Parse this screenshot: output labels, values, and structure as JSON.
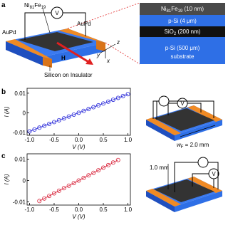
{
  "panel_labels": [
    "a",
    "b",
    "c"
  ],
  "diagram_a": {
    "voltmeter": "V",
    "film": [
      "Ni",
      "81",
      "Fe",
      "19"
    ],
    "contacts": [
      "AuPd",
      "AuPd"
    ],
    "field": "H",
    "substrate": "Silicon on Insulator",
    "axes": [
      "y",
      "z",
      "x"
    ],
    "layers": {
      "film": [
        "Ni",
        "81",
        "Fe",
        "19",
        " (10 nm)"
      ],
      "device": "p-Si (4 μm)",
      "oxide": [
        "SiO",
        "2",
        " (200 nm)"
      ],
      "base": [
        "p-Si (500 μm)",
        "substrate"
      ]
    }
  },
  "schematic_b": {
    "voltmeter": "V",
    "width": [
      "w",
      "F",
      " = 2.0 mm"
    ]
  },
  "schematic_c": {
    "voltmeter": "V",
    "length": "1.0 mm"
  },
  "chart_data": [
    {
      "type": "line",
      "xlabel": "V (V)",
      "ylabel": "I (A)",
      "x": [
        -1,
        -0.9,
        -0.8,
        -0.7,
        -0.6,
        -0.5,
        -0.4,
        -0.3,
        -0.2,
        -0.1,
        0,
        0.1,
        0.2,
        0.3,
        0.4,
        0.5,
        0.6,
        0.7,
        0.8,
        0.9,
        1
      ],
      "series": [
        {
          "color": "#2323d8",
          "values": [
            -0.0095,
            -0.00855,
            -0.0076,
            -0.00665,
            -0.0057,
            -0.00475,
            -0.0038,
            -0.00285,
            -0.0019,
            -0.00095,
            0,
            0.00095,
            0.0019,
            0.00285,
            0.0038,
            0.00475,
            0.0057,
            0.00665,
            0.0076,
            0.00855,
            0.0095
          ]
        }
      ],
      "xlim": [
        -1.05,
        1.05
      ],
      "ylim": [
        -0.0115,
        0.0125
      ],
      "xticks": [
        {
          "value": -1,
          "label": "-1.0"
        },
        {
          "value": -0.5,
          "label": "-0.5"
        },
        {
          "value": 0,
          "label": "0.0"
        },
        {
          "value": 0.5,
          "label": "0.5"
        },
        {
          "value": 1,
          "label": "1.0"
        }
      ],
      "yticks": [
        0.01,
        0,
        -0.01
      ]
    },
    {
      "type": "line",
      "xlabel": "V (V)",
      "ylabel": "I (A)",
      "x": [
        -0.8,
        -0.7,
        -0.6,
        -0.5,
        -0.4,
        -0.3,
        -0.2,
        -0.1,
        0,
        0.1,
        0.2,
        0.3,
        0.4,
        0.5,
        0.6,
        0.7,
        0.8
      ],
      "series": [
        {
          "color": "#d8233a",
          "values": [
            -0.0096,
            -0.0084,
            -0.0072,
            -0.006,
            -0.0048,
            -0.0036,
            -0.0024,
            -0.0012,
            0,
            0.0012,
            0.0024,
            0.0036,
            0.0048,
            0.006,
            0.0072,
            0.0084,
            0.0096
          ]
        }
      ],
      "xlim": [
        -1.05,
        1.05
      ],
      "ylim": [
        -0.0115,
        0.0125
      ],
      "xticks": [
        {
          "value": -1,
          "label": "-1.0"
        },
        {
          "value": -0.5,
          "label": "-0.5"
        },
        {
          "value": 0,
          "label": "0.0"
        },
        {
          "value": 0.5,
          "label": "0.5"
        },
        {
          "value": 1,
          "label": "1.0"
        }
      ],
      "yticks": [
        0.01,
        0,
        -0.01
      ]
    }
  ]
}
